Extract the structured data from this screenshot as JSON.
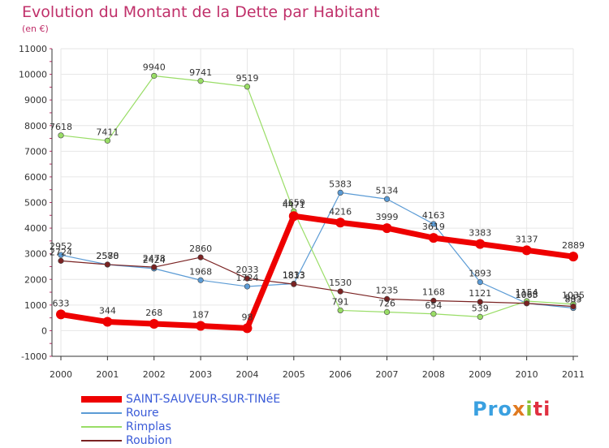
{
  "header": {
    "title": "Evolution du Montant de la Dette par Habitant",
    "subtitle": "(en €)"
  },
  "brand": {
    "part1": "Pro",
    "part2": "x",
    "part3": "i",
    "part4": "ti"
  },
  "colors": {
    "title": "#c0306a",
    "axis": "#333333",
    "grid": "#e6e6e6",
    "legend_text": "#3a5bd8"
  },
  "chart_data": {
    "type": "line",
    "title": "Evolution du Montant de la Dette par Habitant",
    "subtitle": "(en €)",
    "xlabel": "",
    "ylabel": "",
    "x": [
      "2000",
      "2001",
      "2002",
      "2003",
      "2004",
      "2005",
      "2006",
      "2007",
      "2008",
      "2009",
      "2010",
      "2011"
    ],
    "ylim": [
      -1000,
      11000
    ],
    "yticks": [
      -1000,
      0,
      1000,
      2000,
      3000,
      4000,
      5000,
      6000,
      7000,
      8000,
      9000,
      10000,
      11000
    ],
    "grid": true,
    "legend_position": "bottom-left",
    "series": [
      {
        "name": "SAINT-SAUVEUR-SUR-TINéE",
        "color": "#ee0000",
        "values": [
          633,
          344,
          268,
          187,
          98,
          4471,
          4216,
          3999,
          3619,
          3383,
          3137,
          2889
        ]
      },
      {
        "name": "Roure",
        "color": "#5b9bd5",
        "values": [
          2952,
          2578,
          2424,
          1968,
          1724,
          1833,
          5383,
          5134,
          4163,
          1893,
          1068,
          883
        ]
      },
      {
        "name": "Rimplas",
        "color": "#99dd66",
        "values": [
          7618,
          7411,
          9940,
          9741,
          9519,
          4659,
          791,
          726,
          654,
          539,
          1154,
          1035
        ]
      },
      {
        "name": "Roubion",
        "color": "#7a2222",
        "values": [
          2724,
          2580,
          2478,
          2860,
          2033,
          1813,
          1530,
          1235,
          1168,
          1121,
          1065,
          945
        ]
      }
    ]
  }
}
